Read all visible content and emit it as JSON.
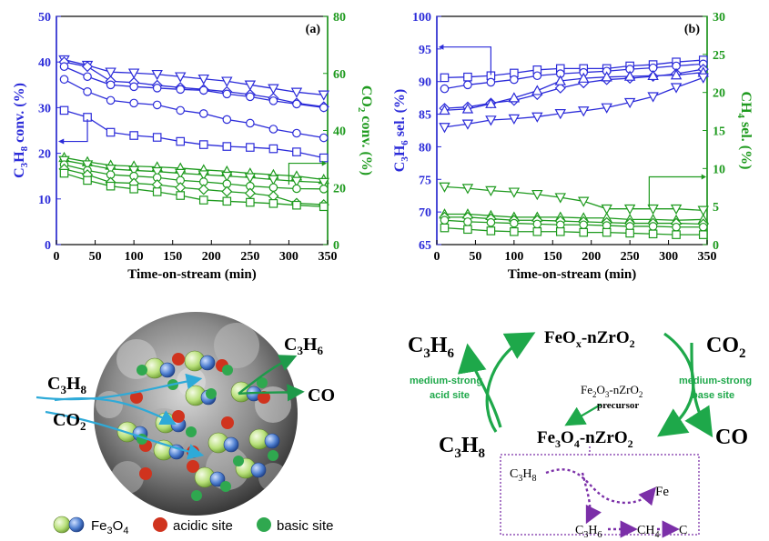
{
  "chart_data": [
    {
      "type": "line",
      "panel_label": "(a)",
      "xlabel": "Time-on-stream (min)",
      "ylabel_left": "C3H8 conv. (%)",
      "ylabel_right": "CO2 conv. (%)",
      "xlim": [
        0,
        350
      ],
      "ylim_left": [
        0,
        50
      ],
      "ylim_right": [
        0,
        80
      ],
      "xticks": [
        0,
        50,
        100,
        150,
        200,
        250,
        300,
        350
      ],
      "yticks_left": [
        0,
        10,
        20,
        30,
        40,
        50
      ],
      "yticks_right": [
        0,
        20,
        40,
        60,
        80
      ],
      "colors": {
        "left": "#2b2bd9",
        "right": "#1e9a1e"
      },
      "x": [
        10,
        40,
        70,
        100,
        130,
        160,
        190,
        220,
        250,
        280,
        310,
        345
      ],
      "series": [
        {
          "axis": "left",
          "marker": "triangle-down",
          "values": [
            40.5,
            39.3,
            37.8,
            37.6,
            37.3,
            36.8,
            36.3,
            35.8,
            35.0,
            34.2,
            33.4,
            32.8
          ]
        },
        {
          "axis": "left",
          "marker": "diamond",
          "values": [
            40.0,
            39.0,
            35.8,
            35.5,
            34.9,
            34.4,
            34.0,
            33.5,
            32.9,
            32.1,
            31.0,
            30.2
          ]
        },
        {
          "axis": "left",
          "marker": "circle",
          "values": [
            39.0,
            36.8,
            35.0,
            34.6,
            34.3,
            34.0,
            33.8,
            33.0,
            32.4,
            31.5,
            30.8,
            30.0
          ]
        },
        {
          "axis": "left",
          "marker": "circle",
          "values": [
            36.2,
            33.5,
            31.6,
            31.0,
            30.6,
            29.4,
            28.7,
            27.4,
            26.6,
            25.3,
            24.4,
            23.4
          ]
        },
        {
          "axis": "left",
          "marker": "square",
          "values": [
            29.4,
            27.9,
            24.6,
            23.9,
            23.5,
            22.6,
            21.9,
            21.5,
            21.3,
            21.0,
            20.3,
            19.0
          ]
        },
        {
          "axis": "right",
          "marker": "triangle-up",
          "values": [
            30.5,
            29.0,
            27.8,
            27.5,
            27.2,
            26.8,
            26.2,
            25.7,
            25.0,
            24.5,
            24.0,
            22.8
          ]
        },
        {
          "axis": "right",
          "marker": "triangle-down",
          "values": [
            29.5,
            28.0,
            26.5,
            26.0,
            25.6,
            25.0,
            24.5,
            24.0,
            23.5,
            22.8,
            22.2,
            21.8
          ]
        },
        {
          "axis": "right",
          "marker": "circle",
          "values": [
            28.0,
            26.0,
            24.5,
            24.0,
            23.5,
            22.5,
            22.0,
            21.3,
            20.5,
            20.0,
            19.6,
            19.5
          ]
        },
        {
          "axis": "right",
          "marker": "diamond",
          "values": [
            26.5,
            24.5,
            21.8,
            21.5,
            21.0,
            20.0,
            19.3,
            18.6,
            18.0,
            17.0,
            14.5,
            14.0
          ]
        },
        {
          "axis": "right",
          "marker": "square",
          "values": [
            25.0,
            22.5,
            20.5,
            19.5,
            18.5,
            17.2,
            15.6,
            15.2,
            14.8,
            14.4,
            13.8,
            13.3
          ]
        }
      ]
    },
    {
      "type": "line",
      "panel_label": "(b)",
      "xlabel": "Time-on-stream (min)",
      "ylabel_left": "C3H6 sel. (%)",
      "ylabel_right": "CH4 sel. (%)",
      "xlim": [
        0,
        350
      ],
      "ylim_left": [
        65,
        100
      ],
      "ylim_right": [
        0,
        30
      ],
      "xticks": [
        0,
        50,
        100,
        150,
        200,
        250,
        300,
        350
      ],
      "yticks_left": [
        65,
        70,
        75,
        80,
        85,
        90,
        95,
        100
      ],
      "yticks_right": [
        0,
        5,
        10,
        15,
        20,
        25,
        30
      ],
      "colors": {
        "left": "#2b2bd9",
        "right": "#1e9a1e"
      },
      "x": [
        10,
        40,
        70,
        100,
        130,
        160,
        190,
        220,
        250,
        280,
        310,
        345
      ],
      "series": [
        {
          "axis": "left",
          "marker": "square",
          "values": [
            90.6,
            90.7,
            90.9,
            91.3,
            91.8,
            92.0,
            92.0,
            92.0,
            92.4,
            92.6,
            93.0,
            93.3
          ]
        },
        {
          "axis": "left",
          "marker": "circle",
          "values": [
            88.9,
            89.5,
            89.9,
            90.3,
            90.9,
            91.2,
            91.4,
            91.6,
            91.9,
            92.1,
            92.4,
            92.7
          ]
        },
        {
          "axis": "left",
          "marker": "diamond",
          "values": [
            85.9,
            86.1,
            86.7,
            87.1,
            88.0,
            89.0,
            89.8,
            90.3,
            90.5,
            90.8,
            91.2,
            91.9
          ]
        },
        {
          "axis": "left",
          "marker": "triangle-up",
          "values": [
            85.6,
            85.8,
            86.6,
            87.5,
            88.6,
            90.1,
            90.5,
            90.7,
            90.8,
            90.9,
            91.0,
            91.4
          ]
        },
        {
          "axis": "left",
          "marker": "triangle-down",
          "values": [
            83.0,
            83.5,
            84.1,
            84.3,
            84.6,
            85.1,
            85.5,
            86.0,
            86.8,
            87.7,
            89.1,
            90.6
          ]
        },
        {
          "axis": "right",
          "marker": "triangle-down",
          "values": [
            7.6,
            7.4,
            7.1,
            6.9,
            6.6,
            6.2,
            5.7,
            4.7,
            4.7,
            4.7,
            4.7,
            4.5
          ]
        },
        {
          "axis": "right",
          "marker": "triangle-up",
          "values": [
            4.0,
            4.0,
            3.8,
            3.6,
            3.6,
            3.6,
            3.5,
            3.5,
            3.3,
            3.3,
            3.2,
            3.3
          ]
        },
        {
          "axis": "right",
          "marker": "diamond",
          "values": [
            3.6,
            3.6,
            3.4,
            3.2,
            3.2,
            3.1,
            3.0,
            2.9,
            2.8,
            2.8,
            2.8,
            2.7
          ]
        },
        {
          "axis": "right",
          "marker": "circle",
          "values": [
            3.2,
            3.0,
            2.9,
            2.8,
            2.7,
            2.6,
            2.6,
            2.5,
            2.4,
            2.4,
            2.3,
            2.3
          ]
        },
        {
          "axis": "right",
          "marker": "square",
          "values": [
            2.2,
            2.0,
            1.8,
            1.7,
            1.7,
            1.7,
            1.6,
            1.6,
            1.5,
            1.4,
            1.3,
            1.3
          ]
        }
      ]
    }
  ],
  "scheme_left": {
    "c3h8": "C3H8",
    "co2": "CO2",
    "c3h6": "C3H6",
    "co": "CO",
    "legend": {
      "fe3o4": "Fe3O4",
      "acidic": "acidic site",
      "basic": "basic site"
    },
    "colors": {
      "fe_green": "#b8e07a",
      "fe_blue": "#4f7fd0",
      "acidic": "#d0331e",
      "basic": "#2fa84f",
      "arrow": "#2eaad8",
      "green_arrow": "#1e9a4a"
    }
  },
  "scheme_right": {
    "feox_top": "FeOx-nZrO2",
    "fe3o4_bottom": "Fe3O4-nZrO2",
    "c3h6": "C3H6",
    "c3h8": "C3H8",
    "co2": "CO2",
    "co": "CO",
    "acid_site": [
      "medium-strong",
      "acid site"
    ],
    "base_site": [
      "medium-strong",
      "base site"
    ],
    "precursor": [
      "Fe2O3-nZrO2",
      "precursor"
    ],
    "box": {
      "c3h8": "C3H8",
      "fe": "Fe",
      "c3h6": "C3H6",
      "ch4": "CH4",
      "c": "C"
    },
    "colors": {
      "green": "#1ea84a",
      "purple": "#7b2fa8"
    }
  }
}
